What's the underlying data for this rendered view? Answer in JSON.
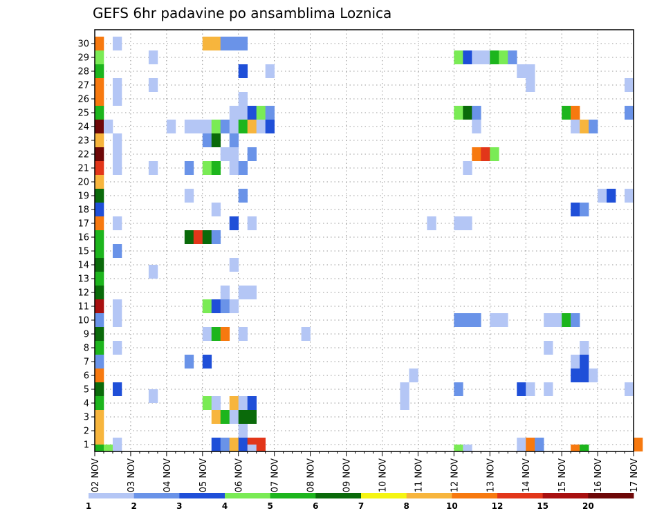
{
  "chart_data": {
    "type": "heatmap",
    "title": "GEFS 6hr padavine po ansamblima Loznica",
    "xlabel": "",
    "ylabel": "",
    "x_tick_labels": [
      "02 NOV",
      "03 NOV",
      "04 NOV",
      "05 NOV",
      "06 NOV",
      "07 NOV",
      "08 NOV",
      "09 NOV",
      "10 NOV",
      "11 NOV",
      "12 NOV",
      "13 NOV",
      "14 NOV",
      "15 NOV",
      "16 NOV",
      "17 NOV"
    ],
    "y_tick_labels": [
      "1",
      "2",
      "3",
      "4",
      "5",
      "6",
      "7",
      "8",
      "9",
      "10",
      "11",
      "12",
      "13",
      "14",
      "15",
      "16",
      "17",
      "18",
      "19",
      "20",
      "21",
      "22",
      "23",
      "24",
      "25",
      "26",
      "27",
      "28",
      "29",
      "30"
    ],
    "xlim_steps": [
      0,
      60
    ],
    "steps_per_day": 4,
    "ylim": [
      0,
      30
    ],
    "grid": true,
    "colorbar": {
      "labels": [
        "1",
        "2",
        "3",
        "4",
        "5",
        "6",
        "7",
        "8",
        "10",
        "12",
        "15",
        "20"
      ],
      "colors": [
        "#b4c6f5",
        "#6a93e8",
        "#1f4fd8",
        "#7aeb55",
        "#1db51d",
        "#0a6a0a",
        "#f5f513",
        "#f7b53d",
        "#f7790f",
        "#e2361a",
        "#a81010",
        "#6e0808"
      ]
    },
    "cells": [
      [
        0,
        0,
        8
      ],
      [
        0,
        1,
        8
      ],
      [
        0,
        2,
        8
      ],
      [
        0,
        3,
        5
      ],
      [
        0,
        4,
        6
      ],
      [
        0,
        5,
        9
      ],
      [
        0,
        6,
        2
      ],
      [
        0,
        7,
        5
      ],
      [
        0,
        8,
        6
      ],
      [
        0,
        9,
        2
      ],
      [
        0,
        10,
        11
      ],
      [
        0,
        11,
        6
      ],
      [
        0,
        12,
        5
      ],
      [
        0,
        13,
        6
      ],
      [
        0,
        14,
        5
      ],
      [
        0,
        15,
        5
      ],
      [
        0,
        16,
        9
      ],
      [
        0,
        17,
        3
      ],
      [
        0,
        18,
        6
      ],
      [
        0,
        19,
        8
      ],
      [
        0,
        20,
        10
      ],
      [
        0,
        21,
        12
      ],
      [
        0,
        22,
        8
      ],
      [
        0,
        23,
        12
      ],
      [
        0,
        24,
        5
      ],
      [
        0,
        25,
        9
      ],
      [
        0,
        26,
        9
      ],
      [
        0,
        27,
        5
      ],
      [
        0,
        28,
        4
      ],
      [
        0,
        29,
        9
      ],
      [
        0,
        -0.5,
        5
      ],
      [
        1,
        -0.5,
        4
      ],
      [
        1,
        23,
        1
      ],
      [
        2,
        0,
        1
      ],
      [
        2,
        4,
        3
      ],
      [
        2,
        7,
        1
      ],
      [
        2,
        9,
        1
      ],
      [
        2,
        10,
        1
      ],
      [
        2,
        14,
        2
      ],
      [
        2,
        16,
        1
      ],
      [
        2,
        20,
        1
      ],
      [
        2,
        21,
        1
      ],
      [
        2,
        22,
        1
      ],
      [
        2,
        25,
        1
      ],
      [
        2,
        26,
        1
      ],
      [
        2,
        29,
        1
      ],
      [
        6,
        3.5,
        1
      ],
      [
        6,
        12.5,
        1
      ],
      [
        6,
        20,
        1
      ],
      [
        6,
        26,
        1
      ],
      [
        6,
        28,
        1
      ],
      [
        8,
        23,
        1
      ],
      [
        10,
        6,
        2
      ],
      [
        10,
        15,
        6
      ],
      [
        10,
        18,
        1
      ],
      [
        10,
        20,
        2
      ],
      [
        10,
        23,
        1
      ],
      [
        11,
        15,
        10
      ],
      [
        11,
        23,
        1
      ],
      [
        12,
        3,
        4
      ],
      [
        12,
        6,
        3
      ],
      [
        12,
        8,
        1
      ],
      [
        12,
        10,
        4
      ],
      [
        12,
        15,
        6
      ],
      [
        12,
        20,
        4
      ],
      [
        12,
        22,
        2
      ],
      [
        12,
        23,
        1
      ],
      [
        12,
        29,
        8
      ],
      [
        13,
        0,
        3
      ],
      [
        13,
        2,
        8
      ],
      [
        13,
        3,
        1
      ],
      [
        13,
        8,
        5
      ],
      [
        13,
        10,
        3
      ],
      [
        13,
        15,
        2
      ],
      [
        13,
        17,
        1
      ],
      [
        13,
        20,
        5
      ],
      [
        13,
        22,
        6
      ],
      [
        13,
        23,
        4
      ],
      [
        13,
        29,
        8
      ],
      [
        14,
        0,
        2
      ],
      [
        14,
        2,
        5
      ],
      [
        14,
        8,
        9
      ],
      [
        14,
        10,
        2
      ],
      [
        14,
        11,
        1
      ],
      [
        14,
        21,
        1
      ],
      [
        14,
        23,
        2
      ],
      [
        14,
        29,
        2
      ],
      [
        15,
        0,
        8
      ],
      [
        15,
        2,
        1
      ],
      [
        15,
        3,
        8
      ],
      [
        15,
        10,
        1
      ],
      [
        15,
        13,
        1
      ],
      [
        15,
        16,
        3
      ],
      [
        15,
        20,
        1
      ],
      [
        15,
        21,
        1
      ],
      [
        15,
        22,
        2
      ],
      [
        15,
        23,
        1
      ],
      [
        15,
        24,
        1
      ],
      [
        15,
        29,
        2
      ],
      [
        16,
        0,
        3
      ],
      [
        16,
        1,
        1
      ],
      [
        16,
        2,
        6
      ],
      [
        16,
        3,
        1
      ],
      [
        16,
        8,
        1
      ],
      [
        16,
        11,
        1
      ],
      [
        16,
        18,
        2
      ],
      [
        16,
        20,
        2
      ],
      [
        16,
        23,
        5
      ],
      [
        16,
        24,
        1
      ],
      [
        16,
        25,
        1
      ],
      [
        16,
        27,
        3
      ],
      [
        16,
        29,
        2
      ],
      [
        17,
        0,
        10
      ],
      [
        17,
        2,
        6
      ],
      [
        17,
        3,
        3
      ],
      [
        17,
        11,
        1
      ],
      [
        17,
        16,
        1
      ],
      [
        17,
        21,
        2
      ],
      [
        17,
        23,
        8
      ],
      [
        17,
        24,
        3
      ],
      [
        17,
        -0.5,
        1
      ],
      [
        18,
        0,
        10
      ],
      [
        18,
        23,
        1
      ],
      [
        18,
        24,
        4
      ],
      [
        19,
        23,
        3
      ],
      [
        19,
        24,
        2
      ],
      [
        19,
        27,
        1
      ],
      [
        23,
        8,
        1
      ],
      [
        34,
        3,
        1
      ],
      [
        34,
        4,
        1
      ],
      [
        35,
        5,
        1
      ],
      [
        37,
        16,
        1
      ],
      [
        40,
        4,
        2
      ],
      [
        40,
        9,
        2
      ],
      [
        40,
        16,
        1
      ],
      [
        40,
        24,
        4
      ],
      [
        40,
        28,
        4
      ],
      [
        40,
        -0.5,
        4
      ],
      [
        41,
        9,
        2
      ],
      [
        41,
        16,
        1
      ],
      [
        41,
        20,
        1
      ],
      [
        41,
        24,
        6
      ],
      [
        41,
        28,
        3
      ],
      [
        41,
        -0.5,
        1
      ],
      [
        42,
        9,
        2
      ],
      [
        42,
        21,
        9
      ],
      [
        42,
        23,
        1
      ],
      [
        42,
        24,
        2
      ],
      [
        42,
        28,
        1
      ],
      [
        43,
        21,
        10
      ],
      [
        43,
        28,
        1
      ],
      [
        44,
        9,
        1
      ],
      [
        44,
        21,
        4
      ],
      [
        44,
        28,
        5
      ],
      [
        45,
        9,
        1
      ],
      [
        45,
        28,
        4
      ],
      [
        46,
        28,
        2
      ],
      [
        47,
        0,
        1
      ],
      [
        47,
        4,
        3
      ],
      [
        47,
        27,
        1
      ],
      [
        48,
        0,
        9
      ],
      [
        48,
        4,
        1
      ],
      [
        48,
        26,
        1
      ],
      [
        48,
        27,
        1
      ],
      [
        49,
        0,
        2
      ],
      [
        50,
        4,
        1
      ],
      [
        50,
        7,
        1
      ],
      [
        50,
        9,
        1
      ],
      [
        51,
        9,
        1
      ],
      [
        51,
        9,
        1
      ],
      [
        52,
        9,
        5
      ],
      [
        52,
        24,
        5
      ],
      [
        53,
        5,
        3
      ],
      [
        53,
        6,
        1
      ],
      [
        53,
        9,
        2
      ],
      [
        53,
        17,
        3
      ],
      [
        53,
        -0.5,
        9
      ],
      [
        53,
        23,
        1
      ],
      [
        53,
        24,
        9
      ],
      [
        54,
        5,
        3
      ],
      [
        54,
        6,
        3
      ],
      [
        54,
        7,
        1
      ],
      [
        54,
        17,
        2
      ],
      [
        54,
        23,
        8
      ],
      [
        54,
        -0.5,
        5
      ],
      [
        55,
        5,
        1
      ],
      [
        55,
        23,
        2
      ],
      [
        56,
        18,
        1
      ],
      [
        57,
        18,
        3
      ],
      [
        59,
        4,
        1
      ],
      [
        59,
        18,
        1
      ],
      [
        59,
        24,
        2
      ],
      [
        59,
        26,
        1
      ],
      [
        60,
        0,
        9
      ]
    ]
  }
}
